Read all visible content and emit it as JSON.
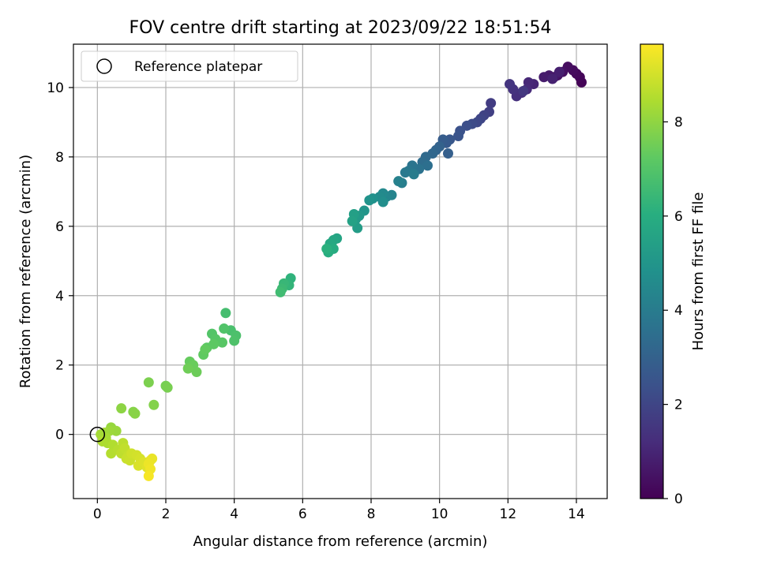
{
  "chart_data": {
    "type": "scatter",
    "title": "FOV centre drift starting at 2023/09/22 18:51:54",
    "xlabel": "Angular distance from reference (arcmin)",
    "ylabel": "Rotation from reference (arcmin)",
    "xlim": [
      -0.7,
      14.9
    ],
    "ylim": [
      -1.85,
      11.25
    ],
    "x_ticks": [
      0,
      2,
      4,
      6,
      8,
      10,
      12,
      14
    ],
    "y_ticks": [
      0,
      2,
      4,
      6,
      8,
      10
    ],
    "grid": true,
    "legend": {
      "placement": "top-left",
      "entries": [
        "Reference platepar"
      ]
    },
    "colorbar": {
      "label": "Hours from first FF file",
      "range": [
        0,
        9.65
      ],
      "ticks": [
        0,
        2,
        4,
        6,
        8
      ],
      "colormap": "viridis"
    },
    "reference_point": {
      "x": 0,
      "y": 0
    },
    "series": [
      {
        "points": [
          {
            "x": 14.15,
            "y": 10.15,
            "h": 0.05
          },
          {
            "x": 14.1,
            "y": 10.3,
            "h": 0.12
          },
          {
            "x": 14.0,
            "y": 10.4,
            "h": 0.2
          },
          {
            "x": 13.9,
            "y": 10.5,
            "h": 0.28
          },
          {
            "x": 13.75,
            "y": 10.6,
            "h": 0.35
          },
          {
            "x": 13.6,
            "y": 10.45,
            "h": 0.42
          },
          {
            "x": 13.45,
            "y": 10.35,
            "h": 0.5
          },
          {
            "x": 13.35,
            "y": 10.3,
            "h": 0.58
          },
          {
            "x": 13.2,
            "y": 10.35,
            "h": 0.66
          },
          {
            "x": 13.05,
            "y": 10.3,
            "h": 0.74
          },
          {
            "x": 13.5,
            "y": 10.45,
            "h": 0.82
          },
          {
            "x": 13.3,
            "y": 10.25,
            "h": 0.9
          },
          {
            "x": 12.75,
            "y": 10.1,
            "h": 1.0
          },
          {
            "x": 12.6,
            "y": 10.15,
            "h": 1.08
          },
          {
            "x": 12.55,
            "y": 9.95,
            "h": 1.16
          },
          {
            "x": 12.4,
            "y": 9.85,
            "h": 1.24
          },
          {
            "x": 12.25,
            "y": 9.75,
            "h": 1.32
          },
          {
            "x": 12.15,
            "y": 9.95,
            "h": 1.4
          },
          {
            "x": 12.05,
            "y": 10.1,
            "h": 1.48
          },
          {
            "x": 12.45,
            "y": 9.9,
            "h": 1.55
          },
          {
            "x": 11.5,
            "y": 9.55,
            "h": 1.7
          },
          {
            "x": 11.45,
            "y": 9.3,
            "h": 1.8
          },
          {
            "x": 11.3,
            "y": 9.2,
            "h": 1.9
          },
          {
            "x": 11.2,
            "y": 9.1,
            "h": 2.0
          },
          {
            "x": 11.1,
            "y": 9.0,
            "h": 2.1
          },
          {
            "x": 10.95,
            "y": 8.95,
            "h": 2.2
          },
          {
            "x": 10.8,
            "y": 8.9,
            "h": 2.3
          },
          {
            "x": 10.6,
            "y": 8.75,
            "h": 2.4
          },
          {
            "x": 10.55,
            "y": 8.6,
            "h": 2.5
          },
          {
            "x": 10.3,
            "y": 8.5,
            "h": 2.6
          },
          {
            "x": 10.2,
            "y": 8.4,
            "h": 2.7
          },
          {
            "x": 10.1,
            "y": 8.5,
            "h": 2.8
          },
          {
            "x": 10.25,
            "y": 8.1,
            "h": 2.9
          },
          {
            "x": 10.0,
            "y": 8.3,
            "h": 3.0
          },
          {
            "x": 9.9,
            "y": 8.2,
            "h": 3.1
          },
          {
            "x": 9.8,
            "y": 8.1,
            "h": 3.2
          },
          {
            "x": 9.6,
            "y": 8.0,
            "h": 3.3
          },
          {
            "x": 9.5,
            "y": 7.85,
            "h": 3.4
          },
          {
            "x": 9.65,
            "y": 7.75,
            "h": 3.5
          },
          {
            "x": 9.4,
            "y": 7.65,
            "h": 3.6
          },
          {
            "x": 9.2,
            "y": 7.75,
            "h": 3.7
          },
          {
            "x": 9.1,
            "y": 7.6,
            "h": 3.8
          },
          {
            "x": 9.0,
            "y": 7.55,
            "h": 3.9
          },
          {
            "x": 9.25,
            "y": 7.5,
            "h": 4.0
          },
          {
            "x": 8.9,
            "y": 7.25,
            "h": 4.1
          },
          {
            "x": 8.8,
            "y": 7.3,
            "h": 4.2
          },
          {
            "x": 8.6,
            "y": 6.9,
            "h": 4.3
          },
          {
            "x": 8.45,
            "y": 6.85,
            "h": 4.4
          },
          {
            "x": 8.35,
            "y": 6.95,
            "h": 4.5
          },
          {
            "x": 8.25,
            "y": 6.85,
            "h": 4.6
          },
          {
            "x": 8.35,
            "y": 6.7,
            "h": 4.7
          },
          {
            "x": 8.05,
            "y": 6.8,
            "h": 4.8
          },
          {
            "x": 7.95,
            "y": 6.75,
            "h": 4.9
          },
          {
            "x": 7.8,
            "y": 6.45,
            "h": 5.0
          },
          {
            "x": 7.65,
            "y": 6.3,
            "h": 5.1
          },
          {
            "x": 7.55,
            "y": 6.2,
            "h": 5.2
          },
          {
            "x": 7.6,
            "y": 5.95,
            "h": 5.3
          },
          {
            "x": 7.5,
            "y": 6.35,
            "h": 5.4
          },
          {
            "x": 7.45,
            "y": 6.15,
            "h": 5.5
          },
          {
            "x": 7.0,
            "y": 5.65,
            "h": 5.6
          },
          {
            "x": 6.9,
            "y": 5.6,
            "h": 5.7
          },
          {
            "x": 6.8,
            "y": 5.5,
            "h": 5.8
          },
          {
            "x": 6.9,
            "y": 5.35,
            "h": 5.9
          },
          {
            "x": 6.75,
            "y": 5.25,
            "h": 6.0
          },
          {
            "x": 6.7,
            "y": 5.35,
            "h": 6.1
          },
          {
            "x": 5.65,
            "y": 4.5,
            "h": 6.2
          },
          {
            "x": 5.6,
            "y": 4.3,
            "h": 6.3
          },
          {
            "x": 5.45,
            "y": 4.35,
            "h": 6.4
          },
          {
            "x": 5.4,
            "y": 4.2,
            "h": 6.5
          },
          {
            "x": 5.35,
            "y": 4.1,
            "h": 6.6
          },
          {
            "x": 3.75,
            "y": 3.5,
            "h": 6.7
          },
          {
            "x": 3.9,
            "y": 3.0,
            "h": 6.8
          },
          {
            "x": 4.05,
            "y": 2.85,
            "h": 6.85
          },
          {
            "x": 4.0,
            "y": 2.7,
            "h": 6.9
          },
          {
            "x": 3.7,
            "y": 3.05,
            "h": 6.95
          },
          {
            "x": 3.35,
            "y": 2.9,
            "h": 7.0
          },
          {
            "x": 3.45,
            "y": 2.75,
            "h": 7.05
          },
          {
            "x": 3.65,
            "y": 2.65,
            "h": 7.1
          },
          {
            "x": 3.2,
            "y": 2.5,
            "h": 7.15
          },
          {
            "x": 3.4,
            "y": 2.6,
            "h": 7.2
          },
          {
            "x": 3.1,
            "y": 2.3,
            "h": 7.25
          },
          {
            "x": 3.15,
            "y": 2.45,
            "h": 7.3
          },
          {
            "x": 2.7,
            "y": 2.1,
            "h": 7.35
          },
          {
            "x": 2.8,
            "y": 2.0,
            "h": 7.4
          },
          {
            "x": 2.9,
            "y": 1.8,
            "h": 7.45
          },
          {
            "x": 2.65,
            "y": 1.9,
            "h": 7.5
          },
          {
            "x": 2.0,
            "y": 1.4,
            "h": 7.6
          },
          {
            "x": 2.05,
            "y": 1.35,
            "h": 7.65
          },
          {
            "x": 1.5,
            "y": 1.5,
            "h": 7.7
          },
          {
            "x": 1.65,
            "y": 0.85,
            "h": 7.8
          },
          {
            "x": 1.05,
            "y": 0.65,
            "h": 7.85
          },
          {
            "x": 1.1,
            "y": 0.6,
            "h": 7.9
          },
          {
            "x": 0.7,
            "y": 0.75,
            "h": 7.95
          },
          {
            "x": 0.4,
            "y": 0.2,
            "h": 8.1
          },
          {
            "x": 0.55,
            "y": 0.1,
            "h": 8.15
          },
          {
            "x": 0.35,
            "y": 0.1,
            "h": 8.2
          },
          {
            "x": 0.2,
            "y": 0.05,
            "h": 8.25
          },
          {
            "x": 0.1,
            "y": 0.0,
            "h": 8.3
          },
          {
            "x": 0.25,
            "y": -0.1,
            "h": 8.35
          },
          {
            "x": 0.3,
            "y": -0.25,
            "h": 8.4
          },
          {
            "x": 0.15,
            "y": -0.2,
            "h": 8.45
          },
          {
            "x": 0.45,
            "y": -0.3,
            "h": 8.5
          },
          {
            "x": 0.4,
            "y": -0.55,
            "h": 8.55
          },
          {
            "x": 0.6,
            "y": -0.45,
            "h": 8.6
          },
          {
            "x": 0.75,
            "y": -0.25,
            "h": 8.65
          },
          {
            "x": 0.7,
            "y": -0.55,
            "h": 8.7
          },
          {
            "x": 0.8,
            "y": -0.4,
            "h": 8.75
          },
          {
            "x": 0.9,
            "y": -0.6,
            "h": 8.8
          },
          {
            "x": 0.85,
            "y": -0.7,
            "h": 8.85
          },
          {
            "x": 0.95,
            "y": -0.75,
            "h": 8.9
          },
          {
            "x": 1.0,
            "y": -0.55,
            "h": 8.95
          },
          {
            "x": 1.15,
            "y": -0.6,
            "h": 9.0
          },
          {
            "x": 1.25,
            "y": -0.7,
            "h": 9.05
          },
          {
            "x": 1.2,
            "y": -0.9,
            "h": 9.1
          },
          {
            "x": 1.35,
            "y": -0.8,
            "h": 9.15
          },
          {
            "x": 1.45,
            "y": -0.95,
            "h": 9.2
          },
          {
            "x": 1.55,
            "y": -0.75,
            "h": 9.3
          },
          {
            "x": 1.6,
            "y": -0.7,
            "h": 9.35
          },
          {
            "x": 1.5,
            "y": -0.85,
            "h": 9.4
          },
          {
            "x": 1.55,
            "y": -1.0,
            "h": 9.45
          },
          {
            "x": 1.5,
            "y": -1.2,
            "h": 9.55
          }
        ]
      }
    ]
  }
}
